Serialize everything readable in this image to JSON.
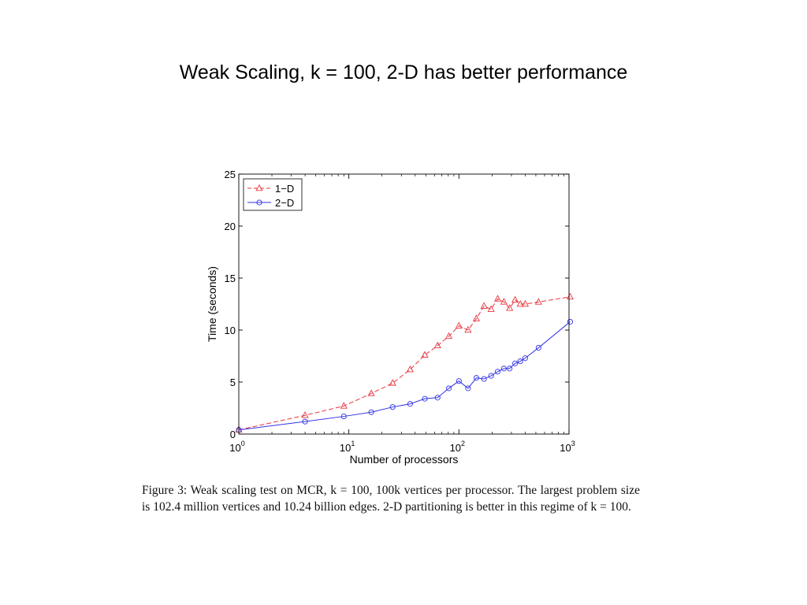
{
  "slide": {
    "title": "Weak Scaling, k = 100, 2-D has better performance"
  },
  "figure": {
    "caption": "Figure 3: Weak scaling test on MCR, k = 100, 100k vertices per processor. The largest problem size is 102.4 million vertices and 10.24 billion edges. 2-D partitioning is better in this regime of k = 100."
  },
  "chart_data": {
    "type": "line",
    "title": "",
    "xlabel": "Number of processors",
    "ylabel": "Time (seconds)",
    "xscale": "log",
    "xlim": [
      1,
      1000
    ],
    "ylim": [
      0,
      25
    ],
    "grid": false,
    "legend_position": "top-left",
    "x_ticks": [
      {
        "base": "10",
        "exp": "0"
      },
      {
        "base": "10",
        "exp": "1"
      },
      {
        "base": "10",
        "exp": "2"
      },
      {
        "base": "10",
        "exp": "3"
      }
    ],
    "y_ticks": [
      "0",
      "5",
      "10",
      "15",
      "20",
      "25"
    ],
    "series": [
      {
        "name": "1−D",
        "color": "#e8333b",
        "line_style": "dashed",
        "marker": "triangle",
        "points": [
          [
            1,
            0.4
          ],
          [
            4,
            1.8
          ],
          [
            9,
            2.7
          ],
          [
            16,
            3.9
          ],
          [
            25,
            4.9
          ],
          [
            36,
            6.2
          ],
          [
            49,
            7.6
          ],
          [
            64,
            8.5
          ],
          [
            81,
            9.4
          ],
          [
            100,
            10.4
          ],
          [
            121,
            10.0
          ],
          [
            144,
            11.1
          ],
          [
            169,
            12.3
          ],
          [
            196,
            12.0
          ],
          [
            225,
            13.0
          ],
          [
            256,
            12.7
          ],
          [
            289,
            12.1
          ],
          [
            324,
            12.9
          ],
          [
            361,
            12.5
          ],
          [
            400,
            12.5
          ],
          [
            529,
            12.7
          ],
          [
            1024,
            13.2
          ]
        ]
      },
      {
        "name": "2−D",
        "color": "#3333e6",
        "line_style": "solid",
        "marker": "circle",
        "points": [
          [
            1,
            0.4
          ],
          [
            4,
            1.2
          ],
          [
            9,
            1.7
          ],
          [
            16,
            2.1
          ],
          [
            25,
            2.6
          ],
          [
            36,
            2.9
          ],
          [
            49,
            3.4
          ],
          [
            64,
            3.5
          ],
          [
            81,
            4.4
          ],
          [
            100,
            5.1
          ],
          [
            121,
            4.4
          ],
          [
            144,
            5.4
          ],
          [
            169,
            5.3
          ],
          [
            196,
            5.6
          ],
          [
            225,
            6.0
          ],
          [
            256,
            6.3
          ],
          [
            289,
            6.3
          ],
          [
            324,
            6.8
          ],
          [
            361,
            7.0
          ],
          [
            400,
            7.3
          ],
          [
            529,
            8.3
          ],
          [
            1024,
            10.8
          ]
        ]
      }
    ]
  }
}
